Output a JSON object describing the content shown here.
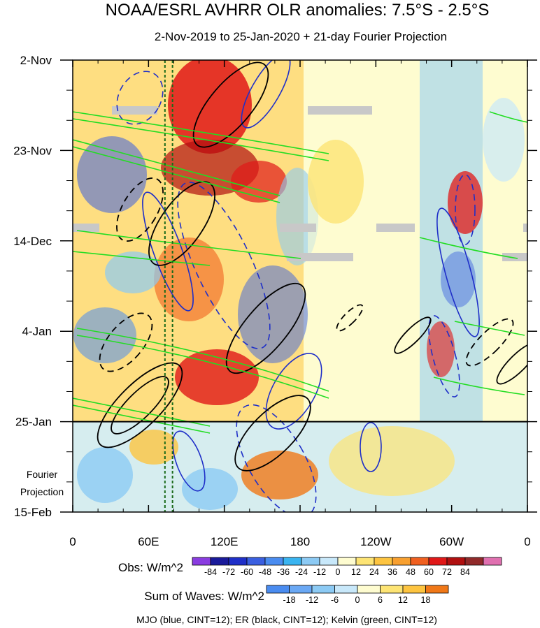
{
  "chart_data": {
    "type": "heatmap",
    "title": "NOAA/ESRL AVHRR OLR anomalies: 7.5°S - 2.5°S",
    "subtitle": "2-Nov-2019 to 25-Jan-2020 + 21-day Fourier Projection",
    "x_ticks": [
      "0",
      "60E",
      "120E",
      "180",
      "120W",
      "60W",
      "0"
    ],
    "x_tick_values": [
      0,
      60,
      120,
      180,
      240,
      300,
      360
    ],
    "xlim": [
      0,
      360
    ],
    "y_ticks": [
      "2-Nov",
      "23-Nov",
      "14-Dec",
      "4-Jan",
      "25-Jan",
      "15-Feb"
    ],
    "y_tick_days": [
      0,
      21,
      42,
      63,
      84,
      105
    ],
    "ylim_days": [
      0,
      105
    ],
    "projection_label": [
      "Fourier",
      "Projection"
    ],
    "projection_start_day": 84,
    "reference_lines_lon": [
      73,
      79
    ],
    "obs_legend": {
      "label": "Obs: W/m^2",
      "levels": [
        "-84",
        "-72",
        "-60",
        "-48",
        "-36",
        "-24",
        "-12",
        "0",
        "12",
        "24",
        "36",
        "48",
        "60",
        "72",
        "84"
      ],
      "colors": [
        "#8a3ce0",
        "#1a1a9a",
        "#1f2fc8",
        "#3a5fe0",
        "#4a8cf0",
        "#3ab4f0",
        "#8ccaf4",
        "#c8e8fa",
        "#fefcd0",
        "#fde474",
        "#fdc440",
        "#f8a030",
        "#f06020",
        "#e01818",
        "#b01010",
        "#902a2a",
        "#e070b0"
      ]
    },
    "waves_legend": {
      "label": "Sum of Waves: W/m^2",
      "levels": [
        "-18",
        "-12",
        "-6",
        "0",
        "6",
        "12",
        "18"
      ],
      "colors": [
        "#4a8cf0",
        "#6aa8f4",
        "#8ccaf4",
        "#c8e8fa",
        "#fefcd0",
        "#fde474",
        "#fdc440",
        "#f07818"
      ]
    },
    "footer": "MJO (blue, CINT=12); ER (black, CINT=12); Kelvin (green, CINT=12)",
    "series": [
      {
        "name": "MJO",
        "color": "#1f2fc8"
      },
      {
        "name": "ER",
        "color": "#000000"
      },
      {
        "name": "Kelvin",
        "color": "#22dd22"
      }
    ]
  }
}
